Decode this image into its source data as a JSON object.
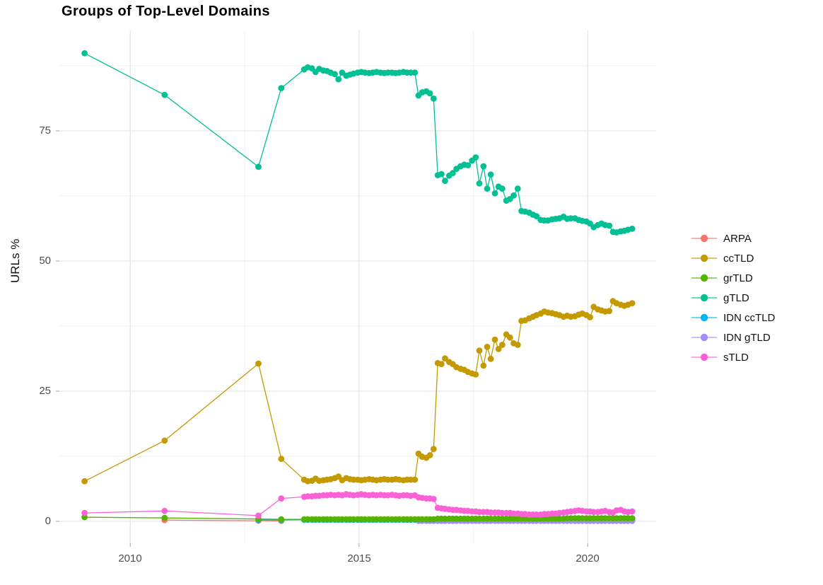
{
  "chart_data": {
    "type": "line",
    "title": "Groups of Top-Level Domains",
    "ylabel": "URLs %",
    "xlabel": "",
    "grid": true,
    "legend_position": "right",
    "axis_ranges": {
      "x": [
        2008.6,
        2021.5
      ],
      "y": [
        0,
        91
      ]
    },
    "grid_major_color": "#E6E6E6",
    "grid_minor_color": "#F2F2F2",
    "tick_color": "#B3B3B3",
    "tick_label_color": "#4D4D4D",
    "x_ticks": [
      {
        "label": "2010",
        "year": 2010
      },
      {
        "label": "2015",
        "year": 2015
      },
      {
        "label": "2020",
        "year": 2020
      }
    ],
    "y_ticks": [
      {
        "label": "0",
        "value": 0
      },
      {
        "label": "25",
        "value": 25
      },
      {
        "label": "50",
        "value": 50
      },
      {
        "label": "75",
        "value": 75
      }
    ],
    "x_minor_ticks": [
      2012.5,
      2017.5
    ],
    "y_minor_ticks": [
      12.5,
      37.5,
      62.5,
      87.5
    ],
    "draw_order": [
      "ARPA",
      "IDN ccTLD",
      "IDN gTLD",
      "grTLD",
      "sTLD",
      "ccTLD",
      "gTLD"
    ],
    "dense_x": [
      2013.8,
      2013.88,
      2013.97,
      2014.05,
      2014.13,
      2014.22,
      2014.3,
      2014.38,
      2014.47,
      2014.55,
      2014.63,
      2014.72,
      2014.8,
      2014.88,
      2014.97,
      2015.05,
      2015.13,
      2015.22,
      2015.3,
      2015.38,
      2015.47,
      2015.55,
      2015.63,
      2015.72,
      2015.8,
      2015.88,
      2015.97,
      2016.05,
      2016.13,
      2016.22,
      2016.3,
      2016.38,
      2016.47,
      2016.55,
      2016.63,
      2016.72,
      2016.8,
      2016.88,
      2016.97,
      2017.05,
      2017.13,
      2017.22,
      2017.3,
      2017.38,
      2017.47,
      2017.55,
      2017.63,
      2017.72,
      2017.8,
      2017.88,
      2017.97,
      2018.05,
      2018.13,
      2018.22,
      2018.3,
      2018.38,
      2018.47,
      2018.55,
      2018.63,
      2018.72,
      2018.8,
      2018.88,
      2018.97,
      2019.05,
      2019.13,
      2019.22,
      2019.3,
      2019.38,
      2019.47,
      2019.55,
      2019.63,
      2019.72,
      2019.8,
      2019.88,
      2019.97,
      2020.05,
      2020.13,
      2020.22,
      2020.3,
      2020.38,
      2020.47,
      2020.55,
      2020.63,
      2020.72,
      2020.8,
      2020.88,
      2020.97
    ],
    "series": [
      {
        "name": "ARPA",
        "color": "#F8766D",
        "sparse": [
          [
            2010.75,
            0.25
          ],
          [
            2012.8,
            0.12
          ],
          [
            2013.3,
            0.08
          ]
        ],
        "dense": null
      },
      {
        "name": "ccTLD",
        "color": "#C49A00",
        "sparse": [
          [
            2009,
            7.7
          ],
          [
            2010.75,
            15.5
          ],
          [
            2012.8,
            30.3
          ],
          [
            2013.3,
            12
          ]
        ],
        "dense": [
          8,
          7.7,
          7.8,
          8.2,
          7.8,
          7.9,
          8,
          8.1,
          8.3,
          8.6,
          7.9,
          8.3,
          8.1,
          8,
          8,
          7.9,
          8,
          8.1,
          8,
          7.9,
          8,
          8.1,
          8,
          8,
          8.1,
          8,
          7.9,
          8,
          8,
          8,
          13,
          12.4,
          12.2,
          12.7,
          13.9,
          30.4,
          30.2,
          31.3,
          30.6,
          30.2,
          29.6,
          29.3,
          29.1,
          28.7,
          28.4,
          28.2,
          32.8,
          29.9,
          33.5,
          31.2,
          34.9,
          33.1,
          33.9,
          35.9,
          35.3,
          34.2,
          33.9,
          38.5,
          38.6,
          39,
          39.3,
          39.6,
          39.9,
          40.3,
          40.1,
          40,
          39.8,
          39.6,
          39.3,
          39.5,
          39.3,
          39.4,
          39.7,
          39.9,
          39.6,
          39.2,
          41.2,
          40.7,
          40.5,
          40.3,
          40.4,
          42.3,
          41.9,
          41.6,
          41.4,
          41.6,
          41.9
        ]
      },
      {
        "name": "grTLD",
        "color": "#53B400",
        "sparse": [
          [
            2009,
            0.8
          ],
          [
            2010.75,
            0.65
          ],
          [
            2012.8,
            0.45
          ],
          [
            2013.3,
            0.4
          ]
        ],
        "dense": [
          0.4,
          0.4,
          0.4,
          0.4,
          0.4,
          0.4,
          0.4,
          0.4,
          0.4,
          0.4,
          0.4,
          0.4,
          0.4,
          0.4,
          0.4,
          0.4,
          0.4,
          0.4,
          0.4,
          0.4,
          0.4,
          0.4,
          0.4,
          0.4,
          0.4,
          0.4,
          0.4,
          0.4,
          0.4,
          0.4,
          0.4,
          0.4,
          0.4,
          0.4,
          0.4,
          0.5,
          0.5,
          0.5,
          0.5,
          0.5,
          0.5,
          0.5,
          0.5,
          0.5,
          0.5,
          0.5,
          0.5,
          0.5,
          0.5,
          0.5,
          0.5,
          0.5,
          0.5,
          0.5,
          0.5,
          0.5,
          0.5,
          0.5,
          0.5,
          0.5,
          0.5,
          0.5,
          0.5,
          0.5,
          0.5,
          0.5,
          0.5,
          0.5,
          0.5,
          0.6,
          0.6,
          0.6,
          0.6,
          0.6,
          0.6,
          0.6,
          0.6,
          0.6,
          0.6,
          0.6,
          0.6,
          0.6,
          0.6,
          0.6,
          0.6,
          0.6,
          0.6
        ]
      },
      {
        "name": "gTLD",
        "color": "#00C094",
        "sparse": [
          [
            2009,
            89.9
          ],
          [
            2010.75,
            81.9
          ],
          [
            2012.8,
            68.1
          ],
          [
            2013.3,
            83.2
          ]
        ],
        "dense": [
          86.8,
          87.2,
          87,
          86.3,
          86.9,
          86.6,
          86.5,
          86.2,
          85.9,
          84.9,
          86.2,
          85.6,
          85.8,
          86,
          86.2,
          86.3,
          86.2,
          86.1,
          86.2,
          86.3,
          86.2,
          86.1,
          86.2,
          86.2,
          86.1,
          86.2,
          86.3,
          86.2,
          86.2,
          86.2,
          81.8,
          82.4,
          82.6,
          82.2,
          81.2,
          66.5,
          66.7,
          65.4,
          66.4,
          66.9,
          67.7,
          68.2,
          68.5,
          68.4,
          69.3,
          69.9,
          64.9,
          68.2,
          63.9,
          66.6,
          63,
          64.3,
          63.9,
          61.6,
          61.9,
          62.6,
          63.9,
          59.6,
          59.5,
          59.3,
          58.9,
          58.6,
          57.9,
          57.8,
          57.8,
          58,
          58.1,
          58.2,
          58.5,
          58.1,
          58.2,
          58.2,
          57.9,
          57.7,
          57.6,
          57.2,
          56.5,
          56.9,
          57.2,
          56.9,
          56.8,
          55.6,
          55.5,
          55.7,
          55.8,
          56,
          56.2
        ]
      },
      {
        "name": "IDN ccTLD",
        "color": "#00B6EB",
        "sparse": [
          [
            2012.8,
            0.3
          ],
          [
            2013.3,
            0.25
          ]
        ],
        "dense": [
          0.3,
          0.3,
          0.3,
          0.3,
          0.3,
          0.3,
          0.3,
          0.3,
          0.3,
          0.3,
          0.3,
          0.3,
          0.3,
          0.3,
          0.3,
          0.3,
          0.3,
          0.3,
          0.3,
          0.3,
          0.3,
          0.3,
          0.3,
          0.3,
          0.3,
          0.3,
          0.3,
          0.3,
          0.3,
          0.3,
          0.3,
          0.3,
          0.3,
          0.3,
          0.3,
          0.3,
          0.3,
          0.3,
          0.3,
          0.3,
          0.3,
          0.3,
          0.3,
          0.3,
          0.3,
          0.3,
          0.3,
          0.3,
          0.3,
          0.3,
          0.3,
          0.2,
          0.2,
          0.2,
          0.2,
          0.2,
          0.2,
          0.2,
          0.2,
          0.2,
          0.2,
          0.2,
          0.2,
          0.2,
          0.2,
          0.2,
          0.2,
          0.2,
          0.2,
          0.2,
          0.2,
          0.2,
          0.2,
          0.2,
          0.2,
          0.2,
          0.2,
          0.2,
          0.2,
          0.2,
          0.2,
          0.2,
          0.2,
          0.2,
          0.2,
          0.2,
          0.2
        ]
      },
      {
        "name": "IDN gTLD",
        "color": "#A58AFF",
        "sparse": [],
        "dense": [
          null,
          null,
          null,
          null,
          null,
          null,
          null,
          null,
          null,
          null,
          null,
          null,
          null,
          null,
          null,
          null,
          null,
          null,
          null,
          null,
          null,
          null,
          null,
          null,
          null,
          null,
          null,
          null,
          null,
          null,
          0.1,
          0.1,
          0.1,
          0.1,
          0.1,
          0.1,
          0.1,
          0.1,
          0.1,
          0.1,
          0.1,
          0.1,
          0.1,
          0.1,
          0.1,
          0.1,
          0.1,
          0.1,
          0.1,
          0.1,
          0.1,
          0.1,
          0.1,
          0.1,
          0.1,
          0.1,
          0.1,
          0.1,
          0.1,
          0.1,
          0.1,
          0.1,
          0.1,
          0.1,
          0.1,
          0.1,
          0.1,
          0.1,
          0.1,
          0.1,
          0.1,
          0.1,
          0.1,
          0.1,
          0.1,
          0.1,
          0.1,
          0.1,
          0.1,
          0.1,
          0.1,
          0.1,
          0.1,
          0.1,
          0.1,
          0.1,
          0.1
        ]
      },
      {
        "name": "sTLD",
        "color": "#FB61D7",
        "sparse": [
          [
            2009,
            1.6
          ],
          [
            2010.75,
            2
          ],
          [
            2012.8,
            1.1
          ],
          [
            2013.3,
            4.4
          ]
        ],
        "dense": [
          4.7,
          4.8,
          4.8,
          4.9,
          4.9,
          5,
          5,
          5.1,
          5,
          5.1,
          5,
          5.2,
          5.1,
          5,
          5.1,
          5.2,
          5.1,
          5,
          5.1,
          5,
          5.1,
          5,
          5,
          5.1,
          5,
          4.9,
          5,
          5,
          4.9,
          5,
          4.6,
          4.5,
          4.4,
          4.4,
          4.3,
          2.6,
          2.5,
          2.4,
          2.3,
          2.2,
          2.2,
          2.1,
          2,
          2,
          1.9,
          1.9,
          1.8,
          1.8,
          1.8,
          1.7,
          1.7,
          1.7,
          1.6,
          1.6,
          1.6,
          1.5,
          1.5,
          1.4,
          1.4,
          1.3,
          1.3,
          1.3,
          1.3,
          1.4,
          1.4,
          1.5,
          1.5,
          1.6,
          1.7,
          1.8,
          1.9,
          2,
          2.1,
          2,
          1.9,
          1.9,
          1.8,
          1.8,
          1.9,
          2,
          1.8,
          1.7,
          2.1,
          2.2,
          1.9,
          1.8,
          1.9
        ]
      }
    ]
  }
}
